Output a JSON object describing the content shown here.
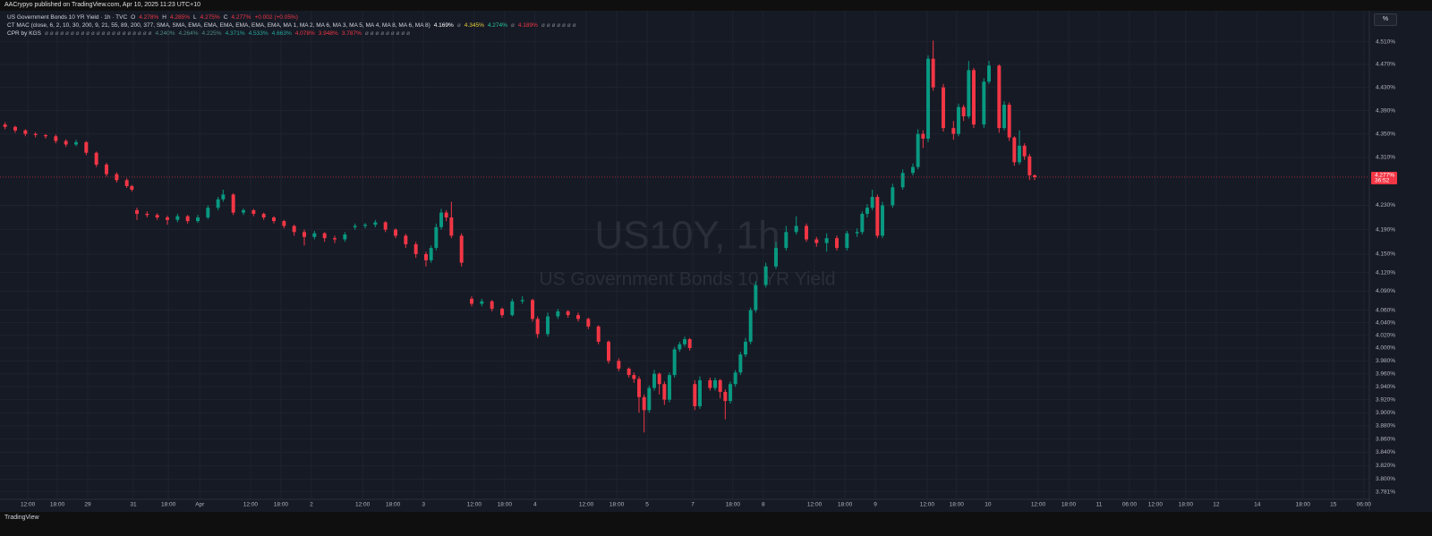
{
  "header": {
    "publisher": "AACrypyo published on TradingView.com, Apr 10, 2025 11:23 UTC+10",
    "legend": [
      {
        "items": [
          {
            "text": "US Government Bonds 10 YR Yield · 1h · TVC",
            "color": "#d1d4dc"
          },
          {
            "text": "O",
            "color": "#d1d4dc"
          },
          {
            "text": "4.278%",
            "color": "#f23645"
          },
          {
            "text": "H",
            "color": "#d1d4dc"
          },
          {
            "text": "4.285%",
            "color": "#f23645"
          },
          {
            "text": "L",
            "color": "#d1d4dc"
          },
          {
            "text": "4.275%",
            "color": "#f23645"
          },
          {
            "text": "C",
            "color": "#d1d4dc"
          },
          {
            "text": "4.277%",
            "color": "#f23645"
          },
          {
            "text": "+0.002 (+0.05%)",
            "color": "#f23645"
          }
        ]
      },
      {
        "items": [
          {
            "text": "CT MAC (close, 6, 2, 10, 30, 200, 9, 21, 55, 89, 200, 377, SMA, SMA, EMA, EMA, EMA, EMA, EMA, EMA, MA 1, MA 2, MA 6, MA 3, MA 5, MA 4, MA 8, MA 6, MA 8)",
            "color": "#d1d4dc"
          },
          {
            "text": "4.169%",
            "color": "#ffffff"
          },
          {
            "text": "ø",
            "color": "#787b86"
          },
          {
            "text": "4.345%",
            "color": "#e8d03a"
          },
          {
            "text": "4.274%",
            "color": "#26c6a0"
          },
          {
            "text": "ø",
            "color": "#787b86"
          },
          {
            "text": "4.189%",
            "color": "#f23645"
          },
          {
            "text": "ø ø ø ø ø ø ø",
            "color": "#787b86"
          }
        ]
      },
      {
        "items": [
          {
            "text": "CPR by KGS",
            "color": "#d1d4dc"
          },
          {
            "text": "ø ø ø ø ø ø ø ø ø ø ø ø ø ø ø ø ø ø ø ø ø",
            "color": "#787b86"
          },
          {
            "text": "4.240%",
            "color": "#4f8a80"
          },
          {
            "text": "4.264%",
            "color": "#4f8a80"
          },
          {
            "text": "4.225%",
            "color": "#4f8a80"
          },
          {
            "text": "4.371%",
            "color": "#26a69a"
          },
          {
            "text": "4.533%",
            "color": "#26a69a"
          },
          {
            "text": "4.663%",
            "color": "#26a69a"
          },
          {
            "text": "4.078%",
            "color": "#f23645"
          },
          {
            "text": "3.948%",
            "color": "#f23645"
          },
          {
            "text": "3.787%",
            "color": "#f23645"
          },
          {
            "text": "ø ø ø ø ø ø ø ø ø",
            "color": "#787b86"
          }
        ]
      }
    ],
    "unit_button": "%",
    "footer": "TradingView"
  },
  "chart_data": {
    "type": "candlestick",
    "symbol": "US10Y, 1h",
    "title": "US Government Bonds 10 YR Yield",
    "up_color": "#089981",
    "down_color": "#f23645",
    "log_scale": true,
    "grid": true,
    "ylim": [
      3.77,
      4.565
    ],
    "yticks": [
      {
        "value": 4.51,
        "label": "4.510%"
      },
      {
        "value": 4.47,
        "label": "4.470%"
      },
      {
        "value": 4.43,
        "label": "4.430%"
      },
      {
        "value": 4.39,
        "label": "4.390%"
      },
      {
        "value": 4.35,
        "label": "4.350%"
      },
      {
        "value": 4.31,
        "label": "4.310%"
      },
      {
        "value": 4.23,
        "label": "4.230%"
      },
      {
        "value": 4.19,
        "label": "4.190%"
      },
      {
        "value": 4.15,
        "label": "4.150%"
      },
      {
        "value": 4.12,
        "label": "4.120%"
      },
      {
        "value": 4.09,
        "label": "4.090%"
      },
      {
        "value": 4.06,
        "label": "4.060%"
      },
      {
        "value": 4.04,
        "label": "4.040%"
      },
      {
        "value": 4.02,
        "label": "4.020%"
      },
      {
        "value": 4.0,
        "label": "4.000%"
      },
      {
        "value": 3.98,
        "label": "3.980%"
      },
      {
        "value": 3.96,
        "label": "3.960%"
      },
      {
        "value": 3.94,
        "label": "3.940%"
      },
      {
        "value": 3.92,
        "label": "3.920%"
      },
      {
        "value": 3.9,
        "label": "3.900%"
      },
      {
        "value": 3.88,
        "label": "3.880%"
      },
      {
        "value": 3.86,
        "label": "3.860%"
      },
      {
        "value": 3.84,
        "label": "3.840%"
      },
      {
        "value": 3.82,
        "label": "3.820%"
      },
      {
        "value": 3.8,
        "label": "3.800%"
      },
      {
        "value": 3.781,
        "label": "3.781%"
      }
    ],
    "xlim": [
      0,
      270
    ],
    "xticks": [
      {
        "value": 5.5,
        "label": "12:00"
      },
      {
        "value": 11.3,
        "label": "18:00"
      },
      {
        "value": 17.3,
        "label": "29"
      },
      {
        "value": 26.3,
        "label": "31"
      },
      {
        "value": 33.2,
        "label": "18:00"
      },
      {
        "value": 39.4,
        "label": "Apr"
      },
      {
        "value": 49.4,
        "label": "12:00"
      },
      {
        "value": 55.4,
        "label": "18:00"
      },
      {
        "value": 61.4,
        "label": "2"
      },
      {
        "value": 71.5,
        "label": "12:00"
      },
      {
        "value": 77.5,
        "label": "18:00"
      },
      {
        "value": 83.5,
        "label": "3"
      },
      {
        "value": 93.5,
        "label": "12:00"
      },
      {
        "value": 99.5,
        "label": "18:00"
      },
      {
        "value": 105.5,
        "label": "4"
      },
      {
        "value": 115.6,
        "label": "12:00"
      },
      {
        "value": 121.6,
        "label": "18:00"
      },
      {
        "value": 127.6,
        "label": "5"
      },
      {
        "value": 136.6,
        "label": "7"
      },
      {
        "value": 144.5,
        "label": "18:00"
      },
      {
        "value": 150.5,
        "label": "8"
      },
      {
        "value": 160.6,
        "label": "12:00"
      },
      {
        "value": 166.6,
        "label": "18:00"
      },
      {
        "value": 172.6,
        "label": "9"
      },
      {
        "value": 182.8,
        "label": "12:00"
      },
      {
        "value": 188.6,
        "label": "18:00"
      },
      {
        "value": 194.8,
        "label": "10"
      },
      {
        "value": 204.7,
        "label": "12:00"
      },
      {
        "value": 210.7,
        "label": "18:00"
      },
      {
        "value": 216.7,
        "label": "11"
      },
      {
        "value": 222.7,
        "label": "06:00"
      },
      {
        "value": 227.8,
        "label": "12:00"
      },
      {
        "value": 233.8,
        "label": "18:00"
      },
      {
        "value": 239.8,
        "label": "12"
      },
      {
        "value": 247.9,
        "label": "14"
      },
      {
        "value": 256.9,
        "label": "18:00"
      },
      {
        "value": 262.9,
        "label": "15"
      },
      {
        "value": 268.9,
        "label": "06:00"
      }
    ],
    "last_price": {
      "value": 4.277,
      "label": "4.277%"
    },
    "countdown": "36:52",
    "candles": [
      [
        1,
        4.366,
        4.37,
        4.358,
        4.362
      ],
      [
        3,
        4.362,
        4.364,
        4.352,
        4.356
      ],
      [
        5,
        4.356,
        4.358,
        4.346,
        4.35
      ],
      [
        7,
        4.35,
        4.353,
        4.344,
        4.348
      ],
      [
        9,
        4.348,
        4.35,
        4.342,
        4.346
      ],
      [
        11,
        4.346,
        4.349,
        4.334,
        4.338
      ],
      [
        13,
        4.338,
        4.341,
        4.328,
        4.332
      ],
      [
        15,
        4.332,
        4.34,
        4.329,
        4.336
      ],
      [
        17,
        4.336,
        4.338,
        4.314,
        4.318
      ],
      [
        19,
        4.318,
        4.32,
        4.294,
        4.298
      ],
      [
        21,
        4.298,
        4.301,
        4.278,
        4.282
      ],
      [
        23,
        4.282,
        4.285,
        4.268,
        4.272
      ],
      [
        25,
        4.272,
        4.275,
        4.259,
        4.262
      ],
      [
        26,
        4.262,
        4.264,
        4.253,
        4.256
      ],
      [
        27,
        4.222,
        4.226,
        4.206,
        4.216
      ],
      [
        29,
        4.216,
        4.22,
        4.21,
        4.214
      ],
      [
        31,
        4.214,
        4.217,
        4.206,
        4.21
      ],
      [
        33,
        4.21,
        4.213,
        4.198,
        4.206
      ],
      [
        35,
        4.206,
        4.216,
        4.202,
        4.212
      ],
      [
        37,
        4.212,
        4.214,
        4.2,
        4.204
      ],
      [
        39,
        4.204,
        4.214,
        4.201,
        4.21
      ],
      [
        41,
        4.21,
        4.23,
        4.207,
        4.226
      ],
      [
        43,
        4.226,
        4.244,
        4.222,
        4.24
      ],
      [
        44,
        4.24,
        4.256,
        4.236,
        4.248
      ],
      [
        46,
        4.248,
        4.25,
        4.214,
        4.218
      ],
      [
        48,
        4.218,
        4.225,
        4.214,
        4.222
      ],
      [
        50,
        4.222,
        4.224,
        4.212,
        4.216
      ],
      [
        52,
        4.216,
        4.218,
        4.206,
        4.21
      ],
      [
        54,
        4.21,
        4.212,
        4.2,
        4.204
      ],
      [
        56,
        4.204,
        4.206,
        4.192,
        4.196
      ],
      [
        58,
        4.196,
        4.198,
        4.18,
        4.186
      ],
      [
        60,
        4.186,
        4.19,
        4.164,
        4.178
      ],
      [
        62,
        4.178,
        4.188,
        4.174,
        4.184
      ],
      [
        64,
        4.184,
        4.186,
        4.17,
        4.176
      ],
      [
        66,
        4.176,
        4.18,
        4.168,
        4.174
      ],
      [
        68,
        4.174,
        4.186,
        4.17,
        4.182
      ],
      [
        70,
        4.194,
        4.2,
        4.19,
        4.196
      ],
      [
        72,
        4.196,
        4.201,
        4.192,
        4.198
      ],
      [
        74,
        4.198,
        4.206,
        4.194,
        4.202
      ],
      [
        76,
        4.202,
        4.204,
        4.186,
        4.19
      ],
      [
        78,
        4.19,
        4.192,
        4.176,
        4.18
      ],
      [
        80,
        4.18,
        4.183,
        4.16,
        4.166
      ],
      [
        82,
        4.166,
        4.17,
        4.144,
        4.15
      ],
      [
        84,
        4.15,
        4.154,
        4.13,
        4.14
      ],
      [
        85,
        4.14,
        4.164,
        4.136,
        4.16
      ],
      [
        86,
        4.16,
        4.2,
        4.156,
        4.194
      ],
      [
        87,
        4.194,
        4.224,
        4.19,
        4.218
      ],
      [
        88,
        4.218,
        4.222,
        4.204,
        4.21
      ],
      [
        89,
        4.21,
        4.236,
        4.176,
        4.18
      ],
      [
        91,
        4.18,
        4.184,
        4.13,
        4.136
      ],
      [
        93,
        4.078,
        4.082,
        4.066,
        4.07
      ],
      [
        95,
        4.07,
        4.078,
        4.066,
        4.074
      ],
      [
        97,
        4.074,
        4.076,
        4.058,
        4.062
      ],
      [
        99,
        4.062,
        4.064,
        4.048,
        4.052
      ],
      [
        101,
        4.052,
        4.078,
        4.05,
        4.074
      ],
      [
        103,
        4.074,
        4.082,
        4.07,
        4.076
      ],
      [
        105,
        4.076,
        4.078,
        4.042,
        4.046
      ],
      [
        106,
        4.046,
        4.05,
        4.016,
        4.022
      ],
      [
        108,
        4.022,
        4.056,
        4.018,
        4.05
      ],
      [
        110,
        4.05,
        4.062,
        4.046,
        4.058
      ],
      [
        112,
        4.058,
        4.06,
        4.048,
        4.052
      ],
      [
        114,
        4.052,
        4.056,
        4.042,
        4.046
      ],
      [
        116,
        4.046,
        4.048,
        4.03,
        4.034
      ],
      [
        118,
        4.034,
        4.036,
        4.006,
        4.01
      ],
      [
        120,
        4.01,
        4.012,
        3.976,
        3.98
      ],
      [
        122,
        3.98,
        3.984,
        3.964,
        3.968
      ],
      [
        124,
        3.968,
        3.97,
        3.954,
        3.958
      ],
      [
        125,
        3.958,
        3.962,
        3.946,
        3.952
      ],
      [
        126,
        3.952,
        3.956,
        3.9,
        3.924
      ],
      [
        127,
        3.924,
        3.928,
        3.87,
        3.904
      ],
      [
        128,
        3.904,
        3.942,
        3.9,
        3.938
      ],
      [
        129,
        3.938,
        3.966,
        3.934,
        3.96
      ],
      [
        130,
        3.96,
        3.962,
        3.928,
        3.944
      ],
      [
        131,
        3.944,
        3.948,
        3.912,
        3.92
      ],
      [
        132,
        3.92,
        3.962,
        3.916,
        3.958
      ],
      [
        133,
        3.958,
        4.002,
        3.954,
        3.998
      ],
      [
        134,
        3.998,
        4.01,
        3.994,
        4.006
      ],
      [
        135,
        4.006,
        4.018,
        4.002,
        4.014
      ],
      [
        136,
        4.014,
        4.016,
        3.996,
        4.0
      ],
      [
        137,
        3.944,
        3.95,
        3.904,
        3.91
      ],
      [
        138,
        3.91,
        3.956,
        3.906,
        3.95
      ],
      [
        140,
        3.95,
        3.954,
        3.934,
        3.938
      ],
      [
        141,
        3.938,
        3.954,
        3.934,
        3.95
      ],
      [
        142,
        3.95,
        3.952,
        3.922,
        3.932
      ],
      [
        143,
        3.932,
        3.936,
        3.89,
        3.918
      ],
      [
        144,
        3.918,
        3.948,
        3.914,
        3.944
      ],
      [
        145,
        3.944,
        3.966,
        3.94,
        3.962
      ],
      [
        146,
        3.962,
        3.994,
        3.958,
        3.99
      ],
      [
        147,
        3.99,
        4.016,
        3.986,
        4.01
      ],
      [
        148,
        4.01,
        4.064,
        4.006,
        4.06
      ],
      [
        149,
        4.06,
        4.106,
        4.056,
        4.1
      ],
      [
        151,
        4.1,
        4.136,
        4.096,
        4.13
      ],
      [
        153,
        4.13,
        4.17,
        4.126,
        4.16
      ],
      [
        155,
        4.16,
        4.196,
        4.156,
        4.186
      ],
      [
        157,
        4.186,
        4.212,
        4.182,
        4.196
      ],
      [
        159,
        4.196,
        4.2,
        4.17,
        4.174
      ],
      [
        161,
        4.174,
        4.178,
        4.162,
        4.168
      ],
      [
        163,
        4.168,
        4.184,
        4.154,
        4.176
      ],
      [
        165,
        4.176,
        4.18,
        4.156,
        4.16
      ],
      [
        167,
        4.16,
        4.188,
        4.156,
        4.184
      ],
      [
        169,
        4.184,
        4.192,
        4.178,
        4.186
      ],
      [
        170,
        4.186,
        4.22,
        4.182,
        4.216
      ],
      [
        171,
        4.216,
        4.232,
        4.21,
        4.226
      ],
      [
        172,
        4.226,
        4.256,
        4.222,
        4.244
      ],
      [
        173,
        4.244,
        4.248,
        4.176,
        4.18
      ],
      [
        174,
        4.18,
        4.236,
        4.176,
        4.23
      ],
      [
        176,
        4.23,
        4.266,
        4.226,
        4.26
      ],
      [
        178,
        4.26,
        4.29,
        4.256,
        4.284
      ],
      [
        180,
        4.284,
        4.3,
        4.28,
        4.294
      ],
      [
        181,
        4.294,
        4.358,
        4.29,
        4.35
      ],
      [
        182,
        4.35,
        4.356,
        4.326,
        4.342
      ],
      [
        183,
        4.342,
        4.486,
        4.336,
        4.48
      ],
      [
        184,
        4.48,
        4.512,
        4.424,
        4.43
      ],
      [
        186,
        4.43,
        4.436,
        4.354,
        4.36
      ],
      [
        188,
        4.36,
        4.372,
        4.34,
        4.35
      ],
      [
        189,
        4.35,
        4.402,
        4.346,
        4.396
      ],
      [
        190,
        4.396,
        4.4,
        4.372,
        4.38
      ],
      [
        191,
        4.38,
        4.476,
        4.376,
        4.46
      ],
      [
        192,
        4.46,
        4.464,
        4.36,
        4.366
      ],
      [
        194,
        4.366,
        4.446,
        4.36,
        4.44
      ],
      [
        195,
        4.44,
        4.476,
        4.436,
        4.468
      ],
      [
        197,
        4.468,
        4.47,
        4.352,
        4.36
      ],
      [
        198,
        4.36,
        4.406,
        4.356,
        4.4
      ],
      [
        199,
        4.4,
        4.404,
        4.338,
        4.344
      ],
      [
        200,
        4.344,
        4.346,
        4.296,
        4.302
      ],
      [
        201,
        4.302,
        4.356,
        4.298,
        4.33
      ],
      [
        202,
        4.33,
        4.334,
        4.306,
        4.312
      ],
      [
        203,
        4.312,
        4.316,
        4.272,
        4.28
      ],
      [
        204,
        4.28,
        4.282,
        4.272,
        4.277
      ]
    ]
  }
}
